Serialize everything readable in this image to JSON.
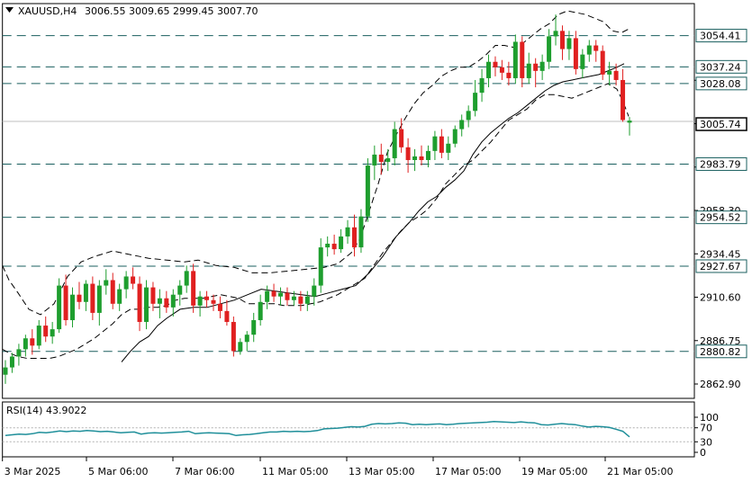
{
  "header": {
    "symbol": "XAUUSD,H4",
    "ohlc": "3006.55 3009.65 2999.45 3007.70"
  },
  "rsi_header": {
    "label": "RSI(14) 43.9022"
  },
  "colors": {
    "bull": "#1e9e2e",
    "bear": "#e02020",
    "rsi_line": "#1f8f9a",
    "level_line": "#1a5f5f",
    "axis": "#000000"
  },
  "chart_data": [
    {
      "type": "candlestick",
      "title": "XAUUSD,H4",
      "ylim": [
        2855,
        3072
      ],
      "y_ticks": [
        2862.9,
        2886.75,
        2910.6,
        2934.45,
        2958.3,
        2982.15,
        3006.0,
        3029.85
      ],
      "y_tick_labels": [
        "2862.90",
        "2886.75",
        "2910.60",
        "2934.45",
        "2958.30",
        "",
        "",
        ""
      ],
      "x_labels": [
        "3 Mar 2025",
        "5 Mar 06:00",
        "7 Mar 06:00",
        "11 Mar 05:00",
        "13 Mar 05:00",
        "17 Mar 05:00",
        "19 Mar 05:00",
        "21 Mar 05:00"
      ],
      "levels": [
        3054.41,
        3037.24,
        3028.08,
        2983.79,
        2954.52,
        2927.67,
        2880.82
      ],
      "level_labels": [
        "3054.41",
        "3037.24",
        "3028.08",
        "2983.79",
        "2954.52",
        "2927.67",
        "2880.82"
      ],
      "current_price": 3005.74,
      "current_price_label": "3005.74",
      "bollinger": {
        "period": 20,
        "deviations": 2
      },
      "candles": [
        [
          2868,
          2876,
          2863,
          2872
        ],
        [
          2872,
          2880,
          2869,
          2878
        ],
        [
          2878,
          2885,
          2873,
          2882
        ],
        [
          2882,
          2890,
          2878,
          2888
        ],
        [
          2888,
          2893,
          2879,
          2884
        ],
        [
          2884,
          2898,
          2882,
          2895
        ],
        [
          2895,
          2900,
          2886,
          2889
        ],
        [
          2889,
          2897,
          2885,
          2893
        ],
        [
          2893,
          2921,
          2891,
          2917
        ],
        [
          2917,
          2923,
          2895,
          2898
        ],
        [
          2898,
          2916,
          2894,
          2912
        ],
        [
          2912,
          2919,
          2904,
          2908
        ],
        [
          2908,
          2920,
          2903,
          2918
        ],
        [
          2918,
          2922,
          2898,
          2902
        ],
        [
          2902,
          2920,
          2895,
          2917
        ],
        [
          2917,
          2926,
          2912,
          2920
        ],
        [
          2920,
          2924,
          2904,
          2907
        ],
        [
          2907,
          2918,
          2903,
          2915
        ],
        [
          2915,
          2925,
          2910,
          2922
        ],
        [
          2922,
          2927,
          2915,
          2918
        ],
        [
          2918,
          2922,
          2892,
          2897
        ],
        [
          2897,
          2920,
          2893,
          2916
        ],
        [
          2916,
          2919,
          2903,
          2907
        ],
        [
          2907,
          2915,
          2899,
          2910
        ],
        [
          2910,
          2914,
          2902,
          2905
        ],
        [
          2905,
          2915,
          2900,
          2912
        ],
        [
          2912,
          2920,
          2906,
          2917
        ],
        [
          2917,
          2928,
          2913,
          2925
        ],
        [
          2925,
          2929,
          2902,
          2906
        ],
        [
          2906,
          2914,
          2900,
          2911
        ],
        [
          2911,
          2914,
          2905,
          2909
        ],
        [
          2909,
          2912,
          2903,
          2907
        ],
        [
          2907,
          2911,
          2899,
          2903
        ],
        [
          2903,
          2909,
          2895,
          2897
        ],
        [
          2897,
          2900,
          2878,
          2881
        ],
        [
          2881,
          2888,
          2879,
          2886
        ],
        [
          2886,
          2892,
          2881,
          2890
        ],
        [
          2890,
          2902,
          2886,
          2898
        ],
        [
          2898,
          2912,
          2895,
          2908
        ],
        [
          2908,
          2917,
          2904,
          2914
        ],
        [
          2914,
          2918,
          2908,
          2911
        ],
        [
          2911,
          2916,
          2906,
          2913
        ],
        [
          2913,
          2916,
          2906,
          2909
        ],
        [
          2909,
          2914,
          2906,
          2911
        ],
        [
          2911,
          2914,
          2903,
          2907
        ],
        [
          2907,
          2914,
          2903,
          2911
        ],
        [
          2911,
          2921,
          2906,
          2917
        ],
        [
          2917,
          2943,
          2913,
          2938
        ],
        [
          2938,
          2944,
          2933,
          2940
        ],
        [
          2940,
          2945,
          2934,
          2937
        ],
        [
          2937,
          2948,
          2935,
          2944
        ],
        [
          2944,
          2953,
          2940,
          2949
        ],
        [
          2949,
          2956,
          2933,
          2938
        ],
        [
          2938,
          2959,
          2935,
          2955
        ],
        [
          2955,
          2987,
          2952,
          2983
        ],
        [
          2983,
          2994,
          2975,
          2989
        ],
        [
          2989,
          2995,
          2978,
          2985
        ],
        [
          2985,
          2992,
          2980,
          2987
        ],
        [
          2987,
          3007,
          2983,
          3003
        ],
        [
          3003,
          3009,
          2990,
          2993
        ],
        [
          2993,
          2998,
          2979,
          2986
        ],
        [
          2986,
          2992,
          2980,
          2988
        ],
        [
          2988,
          2994,
          2983,
          2986
        ],
        [
          2986,
          2994,
          2982,
          2991
        ],
        [
          2991,
          3002,
          2986,
          2999
        ],
        [
          2999,
          3003,
          2987,
          2990
        ],
        [
          2990,
          2999,
          2986,
          2995
        ],
        [
          2995,
          3005,
          2993,
          3003
        ],
        [
          3003,
          3011,
          2999,
          3008
        ],
        [
          3008,
          3016,
          3004,
          3013
        ],
        [
          3013,
          3030,
          3010,
          3023
        ],
        [
          3023,
          3036,
          3018,
          3031
        ],
        [
          3031,
          3044,
          3026,
          3040
        ],
        [
          3040,
          3043,
          3032,
          3037
        ],
        [
          3037,
          3041,
          3030,
          3034
        ],
        [
          3034,
          3040,
          3027,
          3031
        ],
        [
          3031,
          3055,
          3028,
          3051
        ],
        [
          3051,
          3054,
          3026,
          3031
        ],
        [
          3031,
          3045,
          3028,
          3039
        ],
        [
          3039,
          3042,
          3026,
          3035
        ],
        [
          3035,
          3044,
          3030,
          3040
        ],
        [
          3040,
          3058,
          3036,
          3054
        ],
        [
          3054,
          3066,
          3049,
          3057
        ],
        [
          3057,
          3060,
          3041,
          3047
        ],
        [
          3047,
          3057,
          3041,
          3053
        ],
        [
          3053,
          3057,
          3033,
          3036
        ],
        [
          3036,
          3047,
          3031,
          3044
        ],
        [
          3044,
          3052,
          3040,
          3049
        ],
        [
          3049,
          3052,
          3040,
          3046
        ],
        [
          3046,
          3049,
          3030,
          3033
        ],
        [
          3033,
          3040,
          3027,
          3035
        ],
        [
          3035,
          3039,
          3027,
          3030
        ],
        [
          3030,
          3036,
          3007,
          3008
        ],
        [
          3006.55,
          3009.65,
          2999.45,
          3007.7
        ]
      ],
      "upper_band": [
        [
          2.7,
          2928
        ],
        [
          10,
          2920
        ],
        [
          20,
          2913
        ],
        [
          32,
          2904
        ],
        [
          45,
          2901
        ],
        [
          60,
          2907
        ],
        [
          75,
          2922
        ],
        [
          90,
          2930
        ],
        [
          105,
          2933
        ],
        [
          125,
          2936
        ],
        [
          145,
          2934
        ],
        [
          165,
          2932
        ],
        [
          185,
          2931
        ],
        [
          205,
          2930
        ],
        [
          220,
          2931
        ],
        [
          240,
          2928
        ],
        [
          260,
          2927
        ],
        [
          280,
          2924
        ],
        [
          300,
          2924
        ],
        [
          320,
          2925
        ],
        [
          340,
          2926
        ],
        [
          360,
          2927
        ],
        [
          375,
          2929
        ],
        [
          390,
          2935
        ],
        [
          400,
          2943
        ],
        [
          410,
          2958
        ],
        [
          420,
          2973
        ],
        [
          430,
          2990
        ],
        [
          440,
          3000
        ],
        [
          450,
          3009
        ],
        [
          460,
          3017
        ],
        [
          470,
          3023
        ],
        [
          480,
          3027
        ],
        [
          490,
          3032
        ],
        [
          500,
          3035
        ],
        [
          510,
          3037
        ],
        [
          520,
          3037
        ],
        [
          530,
          3040
        ],
        [
          540,
          3044
        ],
        [
          550,
          3049
        ],
        [
          560,
          3049
        ],
        [
          570,
          3048
        ],
        [
          580,
          3050
        ],
        [
          590,
          3054
        ],
        [
          600,
          3058
        ],
        [
          610,
          3061
        ],
        [
          620,
          3066
        ],
        [
          630,
          3068
        ],
        [
          640,
          3067
        ],
        [
          650,
          3066
        ],
        [
          660,
          3064
        ],
        [
          670,
          3062
        ],
        [
          680,
          3057
        ],
        [
          690,
          3056
        ],
        [
          698,
          3058
        ]
      ],
      "middle_band": [
        [
          135,
          2875
        ],
        [
          145,
          2881
        ],
        [
          155,
          2886
        ],
        [
          165,
          2889
        ],
        [
          175,
          2895
        ],
        [
          185,
          2899
        ],
        [
          200,
          2904
        ],
        [
          215,
          2905
        ],
        [
          230,
          2905
        ],
        [
          245,
          2907
        ],
        [
          260,
          2909
        ],
        [
          275,
          2912
        ],
        [
          290,
          2915
        ],
        [
          305,
          2914
        ],
        [
          320,
          2913
        ],
        [
          335,
          2912
        ],
        [
          350,
          2911
        ],
        [
          365,
          2913
        ],
        [
          380,
          2915
        ],
        [
          395,
          2917
        ],
        [
          410,
          2924
        ],
        [
          425,
          2933
        ],
        [
          440,
          2944
        ],
        [
          455,
          2952
        ],
        [
          465,
          2958
        ],
        [
          475,
          2963
        ],
        [
          485,
          2966
        ],
        [
          495,
          2971
        ],
        [
          505,
          2975
        ],
        [
          515,
          2980
        ],
        [
          525,
          2989
        ],
        [
          535,
          2996
        ],
        [
          545,
          3001
        ],
        [
          555,
          3005
        ],
        [
          565,
          3009
        ],
        [
          575,
          3012
        ],
        [
          585,
          3016
        ],
        [
          595,
          3020
        ],
        [
          605,
          3024
        ],
        [
          615,
          3027
        ],
        [
          625,
          3029
        ],
        [
          635,
          3030
        ],
        [
          645,
          3031
        ],
        [
          655,
          3032
        ],
        [
          665,
          3033
        ],
        [
          675,
          3035
        ],
        [
          685,
          3037
        ],
        [
          693,
          3039
        ]
      ],
      "lower_band": [
        [
          2.7,
          2882
        ],
        [
          10,
          2880
        ],
        [
          20,
          2878
        ],
        [
          30,
          2877
        ],
        [
          40,
          2877
        ],
        [
          55,
          2877
        ],
        [
          65,
          2878
        ],
        [
          75,
          2880
        ],
        [
          85,
          2882
        ],
        [
          95,
          2885
        ],
        [
          105,
          2888
        ],
        [
          115,
          2892
        ],
        [
          125,
          2896
        ],
        [
          135,
          2901
        ],
        [
          145,
          2904
        ],
        [
          155,
          2904
        ],
        [
          165,
          2905
        ],
        [
          175,
          2905
        ],
        [
          185,
          2906
        ],
        [
          195,
          2909
        ],
        [
          205,
          2910
        ],
        [
          215,
          2910
        ],
        [
          225,
          2910
        ],
        [
          235,
          2911
        ],
        [
          245,
          2912
        ],
        [
          255,
          2911
        ],
        [
          265,
          2910
        ],
        [
          275,
          2907
        ],
        [
          285,
          2907
        ],
        [
          295,
          2907
        ],
        [
          305,
          2907
        ],
        [
          315,
          2906
        ],
        [
          325,
          2906
        ],
        [
          335,
          2906
        ],
        [
          345,
          2907
        ],
        [
          355,
          2908
        ],
        [
          365,
          2910
        ],
        [
          375,
          2912
        ],
        [
          385,
          2915
        ],
        [
          395,
          2918
        ],
        [
          405,
          2921
        ],
        [
          415,
          2928
        ],
        [
          425,
          2935
        ],
        [
          435,
          2941
        ],
        [
          445,
          2947
        ],
        [
          455,
          2952
        ],
        [
          465,
          2955
        ],
        [
          475,
          2959
        ],
        [
          485,
          2965
        ],
        [
          495,
          2973
        ],
        [
          505,
          2978
        ],
        [
          515,
          2983
        ],
        [
          525,
          2986
        ],
        [
          535,
          2991
        ],
        [
          545,
          2996
        ],
        [
          555,
          3002
        ],
        [
          565,
          3008
        ],
        [
          575,
          3011
        ],
        [
          585,
          3014
        ],
        [
          595,
          3019
        ],
        [
          605,
          3022
        ],
        [
          615,
          3022
        ],
        [
          625,
          3021
        ],
        [
          635,
          3020
        ],
        [
          645,
          3022
        ],
        [
          655,
          3024
        ],
        [
          665,
          3026
        ],
        [
          675,
          3028
        ],
        [
          685,
          3025
        ],
        [
          690,
          3020
        ],
        [
          695,
          3014
        ],
        [
          698,
          3010
        ]
      ]
    },
    {
      "type": "line",
      "title": "RSI(14) 43.9022",
      "ylim": [
        0,
        100
      ],
      "y_ticks": [
        0,
        30,
        70,
        100
      ],
      "y_tick_labels": [
        "0",
        "30",
        "70",
        "100"
      ],
      "levels": [
        30,
        70
      ],
      "x_labels": [],
      "values": [
        48,
        50,
        52,
        51,
        53,
        57,
        56,
        58,
        61,
        59,
        61,
        60,
        62,
        61,
        59,
        60,
        58,
        56,
        57,
        58,
        52,
        55,
        56,
        55,
        56,
        57,
        58,
        60,
        53,
        55,
        56,
        55,
        54,
        53,
        48,
        50,
        51,
        53,
        56,
        58,
        58,
        60,
        59,
        60,
        59,
        60,
        62,
        67,
        68,
        69,
        71,
        73,
        72,
        74,
        80,
        82,
        81,
        82,
        84,
        83,
        79,
        80,
        79,
        80,
        81,
        79,
        80,
        82,
        83,
        84,
        85,
        86,
        88,
        87,
        86,
        85,
        87,
        85,
        84,
        79,
        78,
        80,
        82,
        80,
        79,
        75,
        72,
        74,
        73,
        71,
        66,
        60,
        44
      ]
    }
  ]
}
